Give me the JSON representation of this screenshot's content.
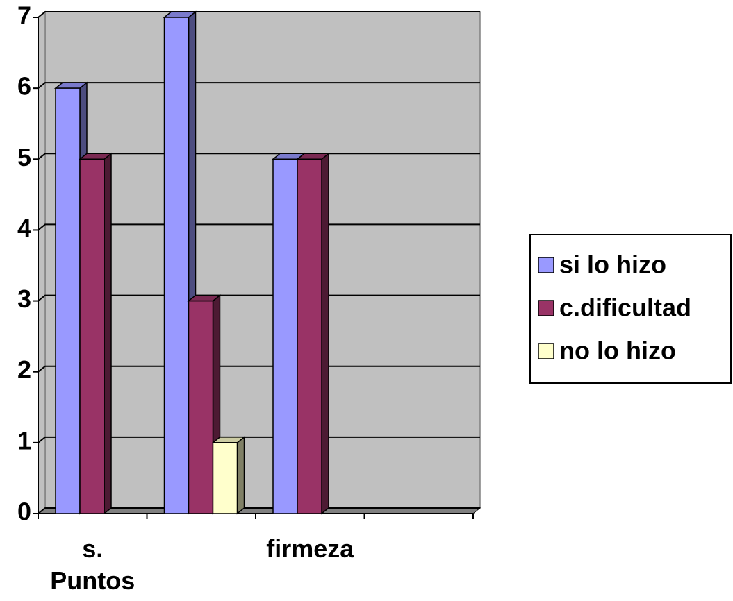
{
  "chart_data": {
    "type": "bar",
    "categories": [
      "s. Puntos",
      null,
      "firmeza",
      null
    ],
    "series": [
      {
        "name": "si lo hizo",
        "color": "#9999ff",
        "values": [
          6,
          7,
          5,
          null
        ]
      },
      {
        "name": "c.dificultad",
        "color": "#993366",
        "values": [
          5,
          3,
          5,
          null
        ]
      },
      {
        "name": "no lo hizo",
        "color": "#ffffcc",
        "values": [
          null,
          1,
          null,
          null
        ]
      }
    ],
    "ylim": [
      0,
      7
    ],
    "yticks": [
      0,
      1,
      2,
      3,
      4,
      5,
      6,
      7
    ],
    "grid": true,
    "legend": "right"
  }
}
